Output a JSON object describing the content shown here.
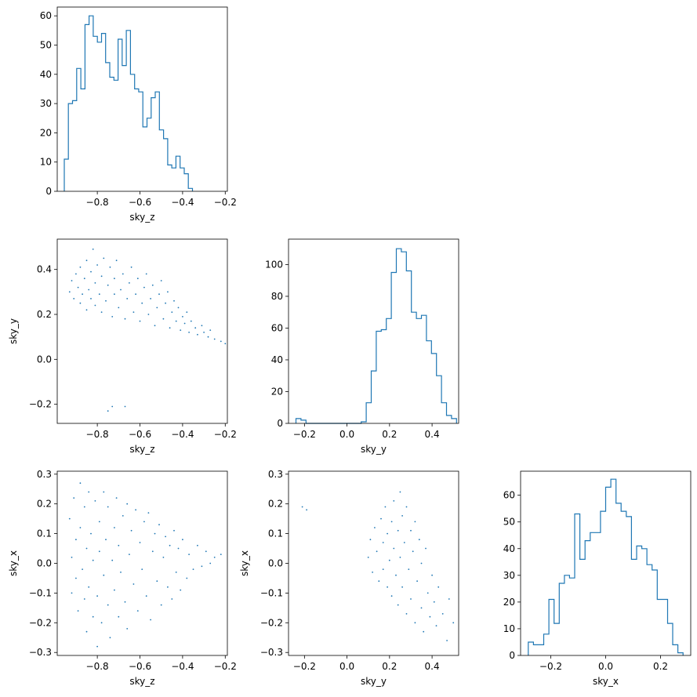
{
  "chart_data": [
    {
      "type": "histogram",
      "xlabel": "sky_z",
      "ylabel": "",
      "xlim": [
        -0.988,
        -0.19
      ],
      "ylim": [
        0,
        63
      ],
      "xticks": [
        -0.8,
        -0.6,
        -0.4,
        -0.2
      ],
      "xtick_labels": [
        "−0.8",
        "−0.6",
        "−0.4",
        "−0.2"
      ],
      "yticks": [
        0,
        10,
        20,
        30,
        40,
        50,
        60
      ],
      "ytick_labels": [
        "0",
        "10",
        "20",
        "30",
        "40",
        "50",
        "60"
      ],
      "bin_start": -0.955,
      "bin_width": 0.0194,
      "counts": [
        11,
        30,
        31,
        42,
        35,
        57,
        60,
        53,
        51,
        54,
        44,
        39,
        38,
        52,
        43,
        55,
        40,
        35,
        34,
        22,
        25,
        32,
        34,
        21,
        18,
        9,
        8,
        12,
        8,
        6,
        1
      ],
      "color": "#1f77b4"
    },
    {
      "type": "scatter",
      "xlabel": "sky_z",
      "ylabel": "sky_y",
      "xlim": [
        -0.988,
        -0.19
      ],
      "ylim": [
        -0.285,
        0.535
      ],
      "xticks": [
        -0.8,
        -0.6,
        -0.4,
        -0.2
      ],
      "xtick_labels": [
        "−0.8",
        "−0.6",
        "−0.4",
        "−0.2"
      ],
      "yticks": [
        -0.2,
        0.0,
        0.2,
        0.4
      ],
      "ytick_labels": [
        "−0.2",
        "0.0",
        "0.2",
        "0.4"
      ],
      "points": [
        [
          -0.93,
          0.3
        ],
        [
          -0.92,
          0.35
        ],
        [
          -0.91,
          0.27
        ],
        [
          -0.9,
          0.38
        ],
        [
          -0.89,
          0.32
        ],
        [
          -0.88,
          0.25
        ],
        [
          -0.88,
          0.41
        ],
        [
          -0.87,
          0.29
        ],
        [
          -0.86,
          0.36
        ],
        [
          -0.85,
          0.22
        ],
        [
          -0.85,
          0.44
        ],
        [
          -0.84,
          0.31
        ],
        [
          -0.83,
          0.27
        ],
        [
          -0.83,
          0.39
        ],
        [
          -0.82,
          0.49
        ],
        [
          -0.81,
          0.24
        ],
        [
          -0.81,
          0.34
        ],
        [
          -0.8,
          0.42
        ],
        [
          -0.79,
          0.29
        ],
        [
          -0.78,
          0.21
        ],
        [
          -0.78,
          0.37
        ],
        [
          -0.77,
          0.45
        ],
        [
          -0.76,
          0.26
        ],
        [
          -0.75,
          0.33
        ],
        [
          -0.74,
          0.41
        ],
        [
          -0.73,
          0.19
        ],
        [
          -0.72,
          0.29
        ],
        [
          -0.72,
          0.36
        ],
        [
          -0.71,
          0.44
        ],
        [
          -0.7,
          0.23
        ],
        [
          -0.69,
          0.31
        ],
        [
          -0.68,
          0.38
        ],
        [
          -0.67,
          0.18
        ],
        [
          -0.66,
          0.27
        ],
        [
          -0.65,
          0.34
        ],
        [
          -0.64,
          0.41
        ],
        [
          -0.63,
          0.21
        ],
        [
          -0.62,
          0.29
        ],
        [
          -0.61,
          0.36
        ],
        [
          -0.6,
          0.17
        ],
        [
          -0.59,
          0.25
        ],
        [
          -0.58,
          0.32
        ],
        [
          -0.57,
          0.38
        ],
        [
          -0.56,
          0.2
        ],
        [
          -0.55,
          0.27
        ],
        [
          -0.54,
          0.33
        ],
        [
          -0.53,
          0.15
        ],
        [
          -0.52,
          0.23
        ],
        [
          -0.51,
          0.29
        ],
        [
          -0.5,
          0.35
        ],
        [
          -0.49,
          0.18
        ],
        [
          -0.48,
          0.25
        ],
        [
          -0.47,
          0.3
        ],
        [
          -0.46,
          0.14
        ],
        [
          -0.45,
          0.21
        ],
        [
          -0.44,
          0.26
        ],
        [
          -0.43,
          0.17
        ],
        [
          -0.42,
          0.23
        ],
        [
          -0.41,
          0.13
        ],
        [
          -0.4,
          0.19
        ],
        [
          -0.39,
          0.16
        ],
        [
          -0.38,
          0.21
        ],
        [
          -0.37,
          0.12
        ],
        [
          -0.36,
          0.17
        ],
        [
          -0.34,
          0.14
        ],
        [
          -0.33,
          0.11
        ],
        [
          -0.31,
          0.15
        ],
        [
          -0.3,
          0.12
        ],
        [
          -0.28,
          0.1
        ],
        [
          -0.27,
          0.13
        ],
        [
          -0.25,
          0.09
        ],
        [
          -0.22,
          0.08
        ],
        [
          -0.2,
          0.07
        ],
        [
          -0.75,
          -0.23
        ],
        [
          -0.73,
          -0.21
        ],
        [
          -0.67,
          -0.21
        ]
      ],
      "color": "#1f77b4"
    },
    {
      "type": "histogram",
      "xlabel": "sky_y",
      "ylabel": "",
      "xlim": [
        -0.275,
        0.525
      ],
      "ylim": [
        0,
        116
      ],
      "xticks": [
        -0.2,
        0.0,
        0.2,
        0.4
      ],
      "xtick_labels": [
        "−0.2",
        "0.0",
        "0.2",
        "0.4"
      ],
      "yticks": [
        0,
        20,
        40,
        60,
        80,
        100
      ],
      "ytick_labels": [
        "0",
        "20",
        "40",
        "60",
        "80",
        "100"
      ],
      "bin_start": -0.24,
      "bin_width": 0.0236,
      "counts": [
        3,
        2,
        0,
        0,
        0,
        0,
        0,
        0,
        0,
        0,
        0,
        0,
        0,
        1,
        13,
        33,
        58,
        59,
        66,
        95,
        110,
        108,
        96,
        70,
        66,
        68,
        52,
        44,
        30,
        13,
        5,
        3
      ],
      "color": "#1f77b4"
    },
    {
      "type": "scatter",
      "xlabel": "sky_z",
      "ylabel": "sky_x",
      "xlim": [
        -0.988,
        -0.19
      ],
      "ylim": [
        -0.31,
        0.31
      ],
      "xticks": [
        -0.8,
        -0.6,
        -0.4,
        -0.2
      ],
      "xtick_labels": [
        "−0.8",
        "−0.6",
        "−0.4",
        "−0.2"
      ],
      "yticks": [
        -0.3,
        -0.2,
        -0.1,
        0.0,
        0.1,
        0.2,
        0.3
      ],
      "ytick_labels": [
        "−0.3",
        "−0.2",
        "−0.1",
        "0.0",
        "0.1",
        "0.2",
        "0.3"
      ],
      "points": [
        [
          -0.93,
          0.15
        ],
        [
          -0.92,
          0.02
        ],
        [
          -0.92,
          -0.1
        ],
        [
          -0.91,
          0.22
        ],
        [
          -0.9,
          0.08
        ],
        [
          -0.9,
          -0.05
        ],
        [
          -0.89,
          -0.16
        ],
        [
          -0.88,
          0.27
        ],
        [
          -0.88,
          0.12
        ],
        [
          -0.87,
          -0.02
        ],
        [
          -0.86,
          -0.12
        ],
        [
          -0.86,
          0.19
        ],
        [
          -0.85,
          0.05
        ],
        [
          -0.85,
          -0.23
        ],
        [
          -0.84,
          0.24
        ],
        [
          -0.84,
          -0.08
        ],
        [
          -0.83,
          0.1
        ],
        [
          -0.82,
          -0.18
        ],
        [
          -0.82,
          0.01
        ],
        [
          -0.81,
          0.21
        ],
        [
          -0.8,
          -0.28
        ],
        [
          -0.8,
          -0.11
        ],
        [
          -0.79,
          0.14
        ],
        [
          -0.79,
          0.04
        ],
        [
          -0.78,
          -0.2
        ],
        [
          -0.77,
          0.24
        ],
        [
          -0.77,
          -0.04
        ],
        [
          -0.76,
          0.08
        ],
        [
          -0.75,
          -0.14
        ],
        [
          -0.75,
          0.19
        ],
        [
          -0.74,
          -0.25
        ],
        [
          -0.73,
          0.01
        ],
        [
          -0.72,
          0.12
        ],
        [
          -0.72,
          -0.09
        ],
        [
          -0.71,
          0.22
        ],
        [
          -0.7,
          -0.18
        ],
        [
          -0.7,
          0.06
        ],
        [
          -0.69,
          -0.03
        ],
        [
          -0.68,
          0.16
        ],
        [
          -0.67,
          -0.13
        ],
        [
          -0.66,
          0.2
        ],
        [
          -0.66,
          -0.22
        ],
        [
          -0.65,
          0.03
        ],
        [
          -0.64,
          0.11
        ],
        [
          -0.63,
          -0.07
        ],
        [
          -0.62,
          0.18
        ],
        [
          -0.61,
          -0.16
        ],
        [
          -0.6,
          0.07
        ],
        [
          -0.59,
          -0.02
        ],
        [
          -0.58,
          0.14
        ],
        [
          -0.57,
          -0.11
        ],
        [
          -0.56,
          0.17
        ],
        [
          -0.55,
          -0.19
        ],
        [
          -0.54,
          0.04
        ],
        [
          -0.53,
          0.1
        ],
        [
          -0.52,
          -0.06
        ],
        [
          -0.51,
          0.13
        ],
        [
          -0.5,
          -0.14
        ],
        [
          -0.49,
          0.02
        ],
        [
          -0.48,
          0.09
        ],
        [
          -0.47,
          -0.08
        ],
        [
          -0.46,
          0.06
        ],
        [
          -0.45,
          -0.12
        ],
        [
          -0.44,
          0.11
        ],
        [
          -0.43,
          -0.03
        ],
        [
          -0.42,
          0.05
        ],
        [
          -0.41,
          -0.09
        ],
        [
          -0.4,
          0.08
        ],
        [
          -0.38,
          -0.05
        ],
        [
          -0.37,
          0.03
        ],
        [
          -0.35,
          -0.02
        ],
        [
          -0.33,
          0.06
        ],
        [
          -0.31,
          -0.01
        ],
        [
          -0.29,
          0.04
        ],
        [
          -0.27,
          0.0
        ],
        [
          -0.25,
          0.02
        ],
        [
          -0.22,
          0.03
        ]
      ],
      "color": "#1f77b4"
    },
    {
      "type": "scatter",
      "xlabel": "sky_y",
      "ylabel": "sky_x",
      "xlim": [
        -0.275,
        0.525
      ],
      "ylim": [
        -0.31,
        0.31
      ],
      "xticks": [
        -0.2,
        0.0,
        0.2,
        0.4
      ],
      "xtick_labels": [
        "−0.2",
        "0.0",
        "0.2",
        "0.4"
      ],
      "yticks": [
        -0.3,
        -0.2,
        -0.1,
        0.0,
        0.1,
        0.2,
        0.3
      ],
      "ytick_labels": [
        "−0.3",
        "−0.2",
        "−0.1",
        "0.0",
        "0.1",
        "0.2",
        "0.3"
      ],
      "points": [
        [
          0.1,
          0.02
        ],
        [
          0.11,
          0.08
        ],
        [
          0.12,
          -0.03
        ],
        [
          0.13,
          0.12
        ],
        [
          0.14,
          0.04
        ],
        [
          0.15,
          -0.06
        ],
        [
          0.16,
          0.15
        ],
        [
          0.17,
          0.07
        ],
        [
          0.17,
          -0.02
        ],
        [
          0.18,
          0.19
        ],
        [
          0.19,
          0.1
        ],
        [
          0.19,
          -0.08
        ],
        [
          0.2,
          0.01
        ],
        [
          0.21,
          0.14
        ],
        [
          0.21,
          -0.11
        ],
        [
          0.22,
          0.21
        ],
        [
          0.22,
          0.05
        ],
        [
          0.23,
          -0.04
        ],
        [
          0.24,
          0.11
        ],
        [
          0.24,
          -0.14
        ],
        [
          0.25,
          0.24
        ],
        [
          0.25,
          0.02
        ],
        [
          0.26,
          0.16
        ],
        [
          0.26,
          -0.08
        ],
        [
          0.27,
          0.07
        ],
        [
          0.28,
          -0.17
        ],
        [
          0.28,
          0.19
        ],
        [
          0.29,
          -0.02
        ],
        [
          0.3,
          0.11
        ],
        [
          0.3,
          -0.12
        ],
        [
          0.31,
          0.04
        ],
        [
          0.32,
          -0.2
        ],
        [
          0.32,
          0.14
        ],
        [
          0.33,
          -0.06
        ],
        [
          0.34,
          0.08
        ],
        [
          0.35,
          -0.15
        ],
        [
          0.35,
          0.0
        ],
        [
          0.36,
          -0.23
        ],
        [
          0.37,
          0.05
        ],
        [
          0.38,
          -0.1
        ],
        [
          0.39,
          -0.18
        ],
        [
          0.4,
          -0.04
        ],
        [
          0.41,
          -0.13
        ],
        [
          0.42,
          -0.21
        ],
        [
          0.43,
          -0.08
        ],
        [
          0.45,
          -0.17
        ],
        [
          0.47,
          -0.26
        ],
        [
          0.48,
          -0.12
        ],
        [
          0.5,
          -0.2
        ],
        [
          -0.21,
          0.19
        ],
        [
          -0.19,
          0.18
        ]
      ],
      "color": "#1f77b4"
    },
    {
      "type": "histogram",
      "xlabel": "sky_x",
      "ylabel": "",
      "xlim": [
        -0.31,
        0.31
      ],
      "ylim": [
        0,
        69
      ],
      "xticks": [
        -0.2,
        0.0,
        0.2
      ],
      "xtick_labels": [
        "−0.2",
        "0.0",
        "0.2"
      ],
      "yticks": [
        0,
        10,
        20,
        30,
        40,
        50,
        60
      ],
      "ytick_labels": [
        "0",
        "10",
        "20",
        "30",
        "40",
        "50",
        "60"
      ],
      "bin_start": -0.282,
      "bin_width": 0.0188,
      "counts": [
        5,
        4,
        4,
        8,
        21,
        12,
        27,
        30,
        29,
        53,
        36,
        43,
        46,
        46,
        54,
        63,
        66,
        57,
        54,
        52,
        36,
        41,
        40,
        34,
        32,
        21,
        21,
        12,
        4,
        1
      ],
      "color": "#1f77b4"
    }
  ]
}
